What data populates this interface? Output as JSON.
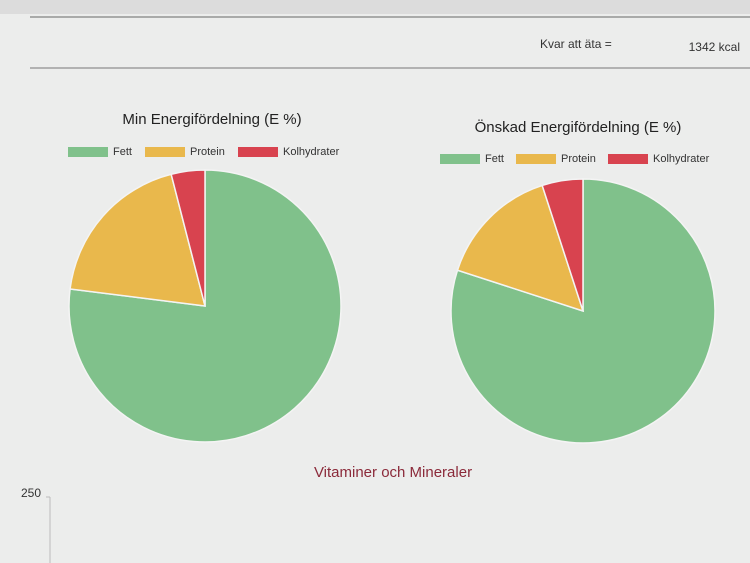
{
  "header": {
    "label": "Kvar att äta =",
    "value": "1342 kcal"
  },
  "chart_data": [
    {
      "type": "pie",
      "title": "Min Energifördelning (E %)",
      "categories": [
        "Fett",
        "Protein",
        "Kolhydrater"
      ],
      "values": [
        77,
        19,
        4
      ],
      "colors": [
        "#80c18b",
        "#e9b84c",
        "#d8434f"
      ]
    },
    {
      "type": "pie",
      "title": "Önskad Energifördelning (E %)",
      "categories": [
        "Fett",
        "Protein",
        "Kolhydrater"
      ],
      "values": [
        80,
        15,
        5
      ],
      "colors": [
        "#80c18b",
        "#e9b84c",
        "#d8434f"
      ]
    },
    {
      "type": "bar",
      "title": "Vitaminer och Mineraler",
      "yticks": [
        250
      ]
    }
  ]
}
